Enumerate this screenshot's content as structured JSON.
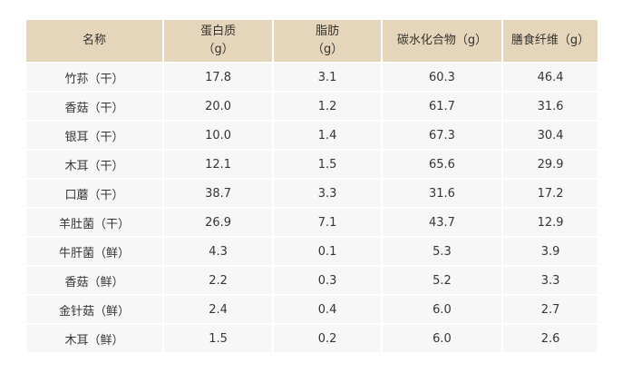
{
  "colors": {
    "header_bg": "#e5d6bb",
    "row_bg": "#f7f7f7",
    "separator": "#ffffff",
    "header_text": "#35332e",
    "body_text": "#363636"
  },
  "table": {
    "columns": [
      {
        "key": "name",
        "label_lines": [
          "名称"
        ]
      },
      {
        "key": "protein",
        "label_lines": [
          "蛋白质",
          "（g）"
        ]
      },
      {
        "key": "fat",
        "label_lines": [
          "脂肪",
          "（g）"
        ]
      },
      {
        "key": "carbs",
        "label_lines": [
          "碳水化合物（g）"
        ]
      },
      {
        "key": "fiber",
        "label_lines": [
          "膳食纤维（g）"
        ]
      }
    ],
    "rows": [
      {
        "name": "竹荪（干）",
        "protein": "17.8",
        "fat": "3.1",
        "carbs": "60.3",
        "fiber": "46.4"
      },
      {
        "name": "香菇（干）",
        "protein": "20.0",
        "fat": "1.2",
        "carbs": "61.7",
        "fiber": "31.6"
      },
      {
        "name": "银耳（干）",
        "protein": "10.0",
        "fat": "1.4",
        "carbs": "67.3",
        "fiber": "30.4"
      },
      {
        "name": "木耳（干）",
        "protein": "12.1",
        "fat": "1.5",
        "carbs": "65.6",
        "fiber": "29.9"
      },
      {
        "name": "口蘑（干）",
        "protein": "38.7",
        "fat": "3.3",
        "carbs": "31.6",
        "fiber": "17.2"
      },
      {
        "name": "羊肚菌（干）",
        "protein": "26.9",
        "fat": "7.1",
        "carbs": "43.7",
        "fiber": "12.9"
      },
      {
        "name": "牛肝菌（鲜）",
        "protein": "4.3",
        "fat": "0.1",
        "carbs": "5.3",
        "fiber": "3.9"
      },
      {
        "name": "香菇（鲜）",
        "protein": "2.2",
        "fat": "0.3",
        "carbs": "5.2",
        "fiber": "3.3"
      },
      {
        "name": "金针菇（鲜）",
        "protein": "2.4",
        "fat": "0.4",
        "carbs": "6.0",
        "fiber": "2.7"
      },
      {
        "name": "木耳（鲜）",
        "protein": "1.5",
        "fat": "0.2",
        "carbs": "6.0",
        "fiber": "2.6"
      }
    ]
  }
}
